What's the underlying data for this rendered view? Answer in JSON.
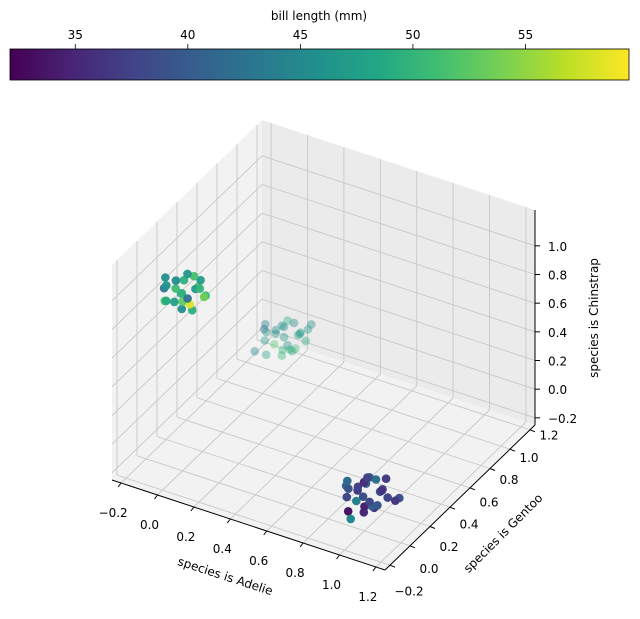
{
  "chart_data": {
    "type": "scatter",
    "projection": "3d",
    "xlabel": "species is Adelie",
    "ylabel": "species is Gentoo",
    "zlabel": "species is Chinstrap",
    "xlim": [
      -0.25,
      1.25
    ],
    "ylim": [
      -0.25,
      1.25
    ],
    "zlim": [
      -0.25,
      1.25
    ],
    "xticks": [
      "−0.2",
      "0.0",
      "0.2",
      "0.4",
      "0.6",
      "0.8",
      "1.0",
      "1.2"
    ],
    "yticks": [
      "−0.2",
      "0.0",
      "0.2",
      "0.4",
      "0.6",
      "0.8",
      "1.0",
      "1.2"
    ],
    "zticks": [
      "−0.2",
      "0.0",
      "0.2",
      "0.4",
      "0.6",
      "0.8",
      "1.0"
    ],
    "tick_values": [
      -0.2,
      0.0,
      0.2,
      0.4,
      0.6,
      0.8,
      1.0,
      1.2
    ],
    "colorbar": {
      "label": "bill length (mm)",
      "colormap": "viridis",
      "range": [
        32.1,
        59.6
      ],
      "ticks": [
        35,
        40,
        45,
        50,
        55
      ],
      "tick_labels": [
        "35",
        "40",
        "45",
        "50",
        "55"
      ],
      "placement": "top"
    },
    "viridis": [
      "#440154",
      "#482475",
      "#414487",
      "#355f8d",
      "#2a788e",
      "#21918c",
      "#22a884",
      "#44bf70",
      "#7ad151",
      "#bddf26",
      "#fde725"
    ],
    "series": [
      {
        "name": "Gentoo",
        "alpha": 0.4,
        "points": [
          [
            0.02,
            0.98,
            0.03,
            47.2
          ],
          [
            -0.06,
            1.04,
            -0.02,
            46.1
          ],
          [
            0.08,
            1.01,
            0.05,
            48.7
          ],
          [
            0.04,
            0.92,
            -0.05,
            50.0
          ],
          [
            -0.03,
            1.07,
            0.02,
            45.3
          ],
          [
            0.1,
            1.05,
            -0.01,
            49.1
          ],
          [
            -0.09,
            0.98,
            0.04,
            42.0
          ],
          [
            0.05,
            1.09,
            0.0,
            47.5
          ],
          [
            0.0,
            1.0,
            -0.08,
            50.5
          ],
          [
            -0.05,
            0.93,
            0.07,
            46.8
          ],
          [
            0.07,
            0.97,
            -0.04,
            48.4
          ],
          [
            0.03,
            1.06,
            0.08,
            44.9
          ],
          [
            -0.08,
            1.08,
            -0.03,
            45.5
          ],
          [
            0.09,
            0.91,
            0.02,
            49.9
          ],
          [
            -0.02,
            1.03,
            0.06,
            46.2
          ],
          [
            0.06,
            1.02,
            -0.06,
            50.8
          ],
          [
            -0.07,
            0.95,
            -0.01,
            47.8
          ],
          [
            0.01,
            0.9,
            0.03,
            52.1
          ],
          [
            0.04,
            1.1,
            -0.02,
            46.6
          ],
          [
            -0.1,
            1.01,
            0.05,
            43.3
          ],
          [
            0.12,
            1.07,
            0.1,
            45.1
          ],
          [
            -0.04,
            0.91,
            -0.07,
            48.2
          ],
          [
            0.0,
            1.05,
            0.09,
            49.3
          ],
          [
            0.05,
            0.96,
            0.0,
            46.0
          ],
          [
            0.14,
            1.0,
            0.12,
            46.4
          ],
          [
            -0.12,
            0.94,
            -0.1,
            44.5
          ]
        ]
      },
      {
        "name": "Chinstrap",
        "alpha": 0.95,
        "points": [
          [
            0.02,
            -0.05,
            1.03,
            46.5
          ],
          [
            -0.06,
            0.04,
            0.97,
            50.9
          ],
          [
            0.08,
            0.01,
            1.06,
            52.0
          ],
          [
            0.04,
            -0.08,
            0.95,
            45.4
          ],
          [
            -0.03,
            0.07,
            1.02,
            49.6
          ],
          [
            0.1,
            0.05,
            0.98,
            50.5
          ],
          [
            -0.09,
            -0.02,
            1.0,
            43.2
          ],
          [
            0.05,
            0.09,
            1.04,
            47.0
          ],
          [
            0.0,
            0.0,
            0.93,
            52.8
          ],
          [
            -0.05,
            -0.07,
            1.07,
            46.1
          ],
          [
            0.07,
            -0.03,
            0.92,
            49.5
          ],
          [
            0.03,
            0.06,
            1.08,
            51.3
          ],
          [
            -0.08,
            0.08,
            0.99,
            45.2
          ],
          [
            0.09,
            -0.09,
            1.01,
            58.0
          ],
          [
            -0.02,
            0.03,
            0.96,
            50.0
          ],
          [
            0.06,
            0.02,
            1.03,
            46.9
          ],
          [
            -0.07,
            -0.05,
            0.94,
            51.7
          ],
          [
            0.01,
            -0.1,
            1.0,
            47.5
          ],
          [
            0.04,
            0.1,
            0.97,
            50.2
          ],
          [
            -0.1,
            0.01,
            1.05,
            45.7
          ],
          [
            0.08,
            0.07,
            0.95,
            53.5
          ],
          [
            -0.04,
            -0.09,
            0.98,
            49.0
          ],
          [
            0.0,
            0.05,
            1.09,
            46.4
          ],
          [
            0.05,
            -0.04,
            1.0,
            42.4
          ]
        ]
      },
      {
        "name": "Adelie",
        "alpha": 1.0,
        "points": [
          [
            1.02,
            -0.05,
            0.03,
            38.9
          ],
          [
            0.94,
            0.04,
            -0.02,
            36.7
          ],
          [
            1.08,
            0.01,
            0.05,
            39.5
          ],
          [
            1.04,
            -0.08,
            -0.05,
            35.1
          ],
          [
            0.97,
            0.07,
            0.02,
            40.3
          ],
          [
            1.1,
            0.05,
            -0.01,
            37.8
          ],
          [
            0.91,
            -0.02,
            0.04,
            41.1
          ],
          [
            1.05,
            0.09,
            0.0,
            38.6
          ],
          [
            1.0,
            0.0,
            -0.08,
            34.5
          ],
          [
            0.95,
            -0.07,
            0.07,
            39.2
          ],
          [
            1.07,
            -0.03,
            -0.04,
            36.2
          ],
          [
            1.03,
            0.06,
            0.08,
            42.2
          ],
          [
            0.92,
            0.08,
            -0.03,
            37.3
          ],
          [
            1.09,
            -0.09,
            0.02,
            40.6
          ],
          [
            0.98,
            0.03,
            0.06,
            35.9
          ],
          [
            1.06,
            0.02,
            -0.06,
            39.8
          ],
          [
            0.93,
            -0.05,
            -0.01,
            38.1
          ],
          [
            1.01,
            -0.1,
            0.03,
            44.1
          ],
          [
            1.04,
            0.1,
            -0.02,
            36.0
          ],
          [
            0.9,
            0.01,
            0.05,
            41.5
          ],
          [
            1.08,
            0.07,
            0.1,
            37.0
          ],
          [
            0.96,
            -0.09,
            -0.07,
            33.5
          ],
          [
            1.0,
            0.05,
            0.09,
            40.9
          ],
          [
            1.05,
            -0.04,
            0.0,
            38.2
          ],
          [
            1.18,
            0.02,
            0.04,
            39.0
          ],
          [
            0.99,
            -0.12,
            -0.09,
            45.0
          ],
          [
            1.12,
            0.09,
            -0.05,
            36.6
          ],
          [
            0.95,
            0.12,
            0.02,
            37.6
          ]
        ]
      }
    ]
  }
}
